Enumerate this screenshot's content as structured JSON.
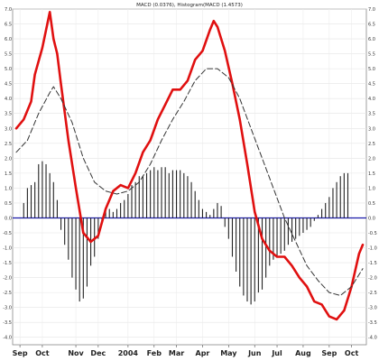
{
  "chart_data": {
    "type": "line",
    "title": "MACD (0.0376), Histogram(MACD (1.4573)",
    "xlabel": "",
    "ylabel": "",
    "grid": true,
    "legend": "none",
    "ylim": [
      -4.25,
      7.0
    ],
    "yticks": [
      7.0,
      6.5,
      6.0,
      5.5,
      5.0,
      4.5,
      4.0,
      3.5,
      3.0,
      2.5,
      2.0,
      1.5,
      1.0,
      0.5,
      0.0,
      -0.5,
      -1.0,
      -1.5,
      -2.0,
      -2.5,
      -3.0,
      -3.5,
      -4.0
    ],
    "ytick_labels": [
      "7.0",
      "6.5",
      "6.0",
      "5.5",
      "5.0",
      "4.5",
      "4.0",
      "3.5",
      "3.0",
      "2.5",
      "2.0",
      "1.5",
      "1.0",
      "0.5",
      "0.0",
      "-0.5",
      "-1.0",
      "-1.5",
      "-2.0",
      "-2.5",
      "-3.0",
      "-3.5",
      "-4.0"
    ],
    "xlim": [
      0,
      93
    ],
    "months": [
      {
        "label": "Sep",
        "x": 1
      },
      {
        "label": "Oct",
        "x": 7
      },
      {
        "label": "Nov",
        "x": 16
      },
      {
        "label": "Dec",
        "x": 22
      },
      {
        "label": "2004",
        "x": 30
      },
      {
        "label": "Feb",
        "x": 37
      },
      {
        "label": "Mar",
        "x": 43
      },
      {
        "label": "Apr",
        "x": 50
      },
      {
        "label": "May",
        "x": 57
      },
      {
        "label": "Jun",
        "x": 64
      },
      {
        "label": "Jul",
        "x": 70
      },
      {
        "label": "Aug",
        "x": 77
      },
      {
        "label": "Sep",
        "x": 84
      },
      {
        "label": "Oct",
        "x": 90
      }
    ],
    "zero_line_color": "#1a1aa8",
    "series": [
      {
        "kind": "line",
        "color": "#e01010",
        "points": [
          [
            0,
            3.0
          ],
          [
            2,
            3.3
          ],
          [
            4,
            3.9
          ],
          [
            5,
            4.8
          ],
          [
            7,
            5.7
          ],
          [
            9,
            6.9
          ],
          [
            10,
            6.0
          ],
          [
            11,
            5.5
          ],
          [
            12,
            4.5
          ],
          [
            14,
            2.6
          ],
          [
            16,
            1.0
          ],
          [
            18,
            -0.5
          ],
          [
            20,
            -0.8
          ],
          [
            22,
            -0.6
          ],
          [
            24,
            0.3
          ],
          [
            26,
            0.9
          ],
          [
            28,
            1.1
          ],
          [
            30,
            1.0
          ],
          [
            32,
            1.5
          ],
          [
            34,
            2.2
          ],
          [
            36,
            2.6
          ],
          [
            38,
            3.3
          ],
          [
            40,
            3.8
          ],
          [
            42,
            4.3
          ],
          [
            44,
            4.3
          ],
          [
            46,
            4.6
          ],
          [
            48,
            5.3
          ],
          [
            50,
            5.6
          ],
          [
            52,
            6.3
          ],
          [
            53,
            6.6
          ],
          [
            54,
            6.4
          ],
          [
            56,
            5.6
          ],
          [
            58,
            4.5
          ],
          [
            60,
            3.3
          ],
          [
            62,
            1.8
          ],
          [
            64,
            0.2
          ],
          [
            66,
            -0.7
          ],
          [
            68,
            -1.1
          ],
          [
            70,
            -1.3
          ],
          [
            72,
            -1.3
          ],
          [
            74,
            -1.6
          ],
          [
            76,
            -2.0
          ],
          [
            78,
            -2.3
          ],
          [
            80,
            -2.8
          ],
          [
            82,
            -2.9
          ],
          [
            84,
            -3.3
          ],
          [
            86,
            -3.4
          ],
          [
            88,
            -3.1
          ],
          [
            90,
            -2.3
          ],
          [
            92,
            -1.2
          ],
          [
            93,
            -0.9
          ]
        ]
      },
      {
        "kind": "line",
        "color": "#333333",
        "dashed": true,
        "points": [
          [
            0,
            2.2
          ],
          [
            3,
            2.6
          ],
          [
            6,
            3.5
          ],
          [
            9,
            4.2
          ],
          [
            10,
            4.4
          ],
          [
            12,
            4.0
          ],
          [
            15,
            3.2
          ],
          [
            18,
            2.0
          ],
          [
            21,
            1.2
          ],
          [
            24,
            0.9
          ],
          [
            27,
            0.8
          ],
          [
            30,
            0.9
          ],
          [
            33,
            1.2
          ],
          [
            36,
            1.8
          ],
          [
            39,
            2.6
          ],
          [
            42,
            3.3
          ],
          [
            45,
            3.9
          ],
          [
            48,
            4.6
          ],
          [
            51,
            5.0
          ],
          [
            54,
            5.0
          ],
          [
            57,
            4.7
          ],
          [
            60,
            4.0
          ],
          [
            63,
            3.0
          ],
          [
            66,
            2.0
          ],
          [
            69,
            1.0
          ],
          [
            72,
            0.0
          ],
          [
            75,
            -0.8
          ],
          [
            78,
            -1.6
          ],
          [
            81,
            -2.1
          ],
          [
            84,
            -2.5
          ],
          [
            87,
            -2.6
          ],
          [
            90,
            -2.3
          ],
          [
            93,
            -1.7
          ]
        ]
      },
      {
        "kind": "histogram",
        "color": "#222222",
        "points": [
          [
            2,
            0.5
          ],
          [
            3,
            1.0
          ],
          [
            4,
            1.1
          ],
          [
            5,
            1.2
          ],
          [
            6,
            1.8
          ],
          [
            7,
            1.9
          ],
          [
            8,
            1.8
          ],
          [
            9,
            1.5
          ],
          [
            10,
            1.2
          ],
          [
            11,
            0.6
          ],
          [
            12,
            -0.4
          ],
          [
            13,
            -0.9
          ],
          [
            14,
            -1.4
          ],
          [
            15,
            -2.0
          ],
          [
            16,
            -2.4
          ],
          [
            17,
            -2.8
          ],
          [
            18,
            -2.7
          ],
          [
            19,
            -2.3
          ],
          [
            20,
            -1.6
          ],
          [
            21,
            -1.3
          ],
          [
            22,
            -0.7
          ],
          [
            23,
            -0.2
          ],
          [
            24,
            0.3
          ],
          [
            25,
            0.3
          ],
          [
            26,
            0.2
          ],
          [
            27,
            0.3
          ],
          [
            28,
            0.5
          ],
          [
            29,
            0.6
          ],
          [
            30,
            0.8
          ],
          [
            31,
            1.1
          ],
          [
            32,
            1.2
          ],
          [
            33,
            1.4
          ],
          [
            34,
            1.4
          ],
          [
            35,
            1.5
          ],
          [
            36,
            1.6
          ],
          [
            37,
            1.7
          ],
          [
            38,
            1.6
          ],
          [
            39,
            1.7
          ],
          [
            40,
            1.7
          ],
          [
            41,
            1.5
          ],
          [
            42,
            1.6
          ],
          [
            43,
            1.6
          ],
          [
            44,
            1.6
          ],
          [
            45,
            1.5
          ],
          [
            46,
            1.4
          ],
          [
            47,
            1.2
          ],
          [
            48,
            0.9
          ],
          [
            49,
            0.6
          ],
          [
            50,
            0.3
          ],
          [
            51,
            0.2
          ],
          [
            52,
            0.1
          ],
          [
            53,
            0.3
          ],
          [
            54,
            0.5
          ],
          [
            55,
            0.4
          ],
          [
            56,
            -0.3
          ],
          [
            57,
            -0.7
          ],
          [
            58,
            -1.3
          ],
          [
            59,
            -1.8
          ],
          [
            60,
            -2.3
          ],
          [
            61,
            -2.6
          ],
          [
            62,
            -2.8
          ],
          [
            63,
            -2.9
          ],
          [
            64,
            -2.8
          ],
          [
            65,
            -2.5
          ],
          [
            66,
            -2.4
          ],
          [
            67,
            -2.0
          ],
          [
            68,
            -1.6
          ],
          [
            69,
            -1.4
          ],
          [
            70,
            -1.3
          ],
          [
            71,
            -1.2
          ],
          [
            72,
            -1.1
          ],
          [
            73,
            -0.9
          ],
          [
            74,
            -0.8
          ],
          [
            75,
            -0.7
          ],
          [
            76,
            -0.6
          ],
          [
            77,
            -0.5
          ],
          [
            78,
            -0.4
          ],
          [
            79,
            -0.3
          ],
          [
            80,
            -0.1
          ],
          [
            81,
            0.1
          ],
          [
            82,
            0.3
          ],
          [
            83,
            0.5
          ],
          [
            84,
            0.7
          ],
          [
            85,
            1.0
          ],
          [
            86,
            1.2
          ],
          [
            87,
            1.4
          ],
          [
            88,
            1.5
          ],
          [
            89,
            1.5
          ]
        ]
      }
    ]
  }
}
